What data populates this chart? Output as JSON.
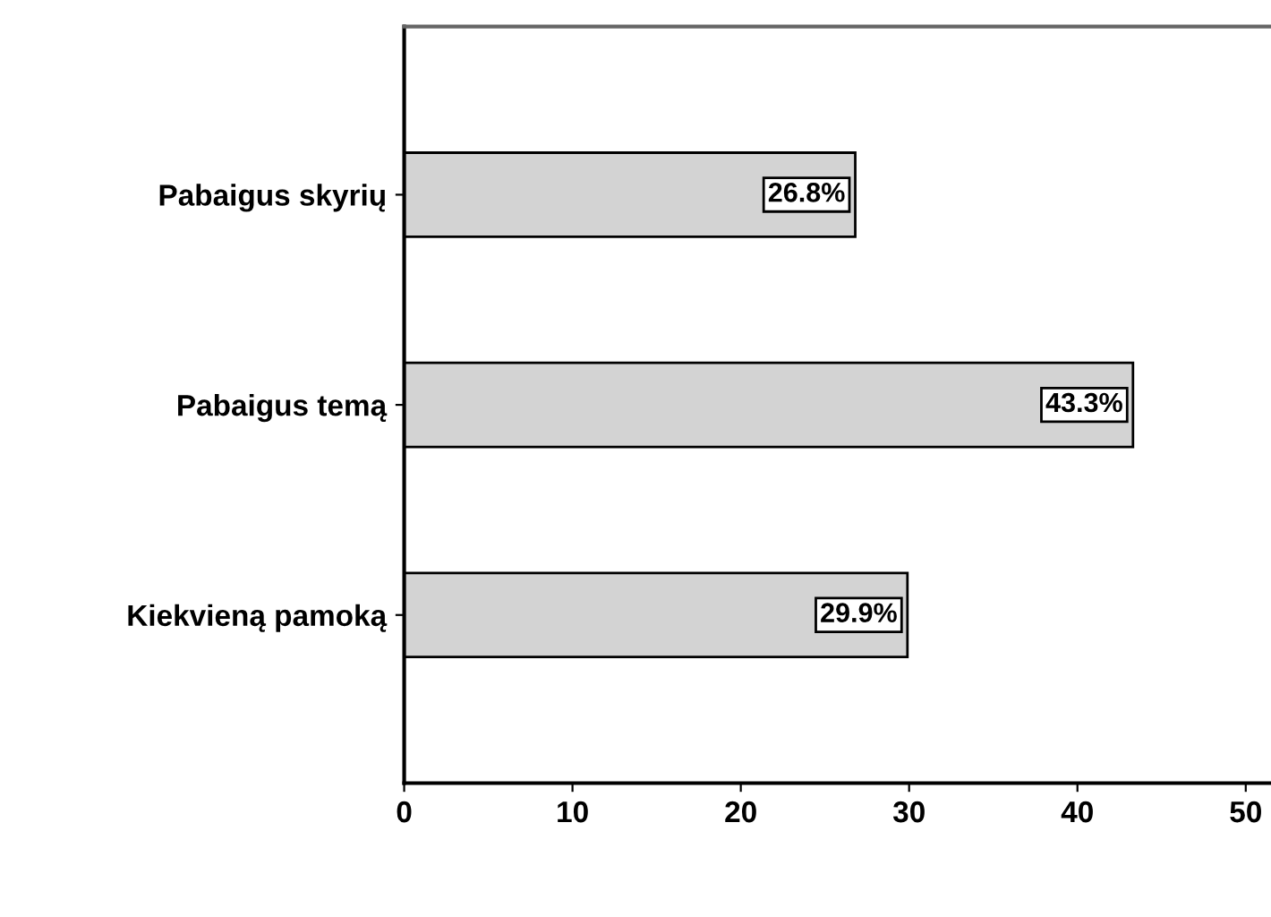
{
  "chart_data": {
    "type": "bar",
    "orientation": "horizontal",
    "categories": [
      "Pabaigus skyrių",
      "Pabaigus temą",
      "Kiekvieną pamoką"
    ],
    "values": [
      26.8,
      43.3,
      29.9
    ],
    "value_labels": [
      "26.8%",
      "43.3%",
      "29.9%"
    ],
    "color": "#d3d3d3",
    "xlim": [
      0,
      51.5
    ],
    "xticks": [
      0,
      10,
      20,
      30,
      40,
      50
    ],
    "grid": false,
    "legend": false
  }
}
